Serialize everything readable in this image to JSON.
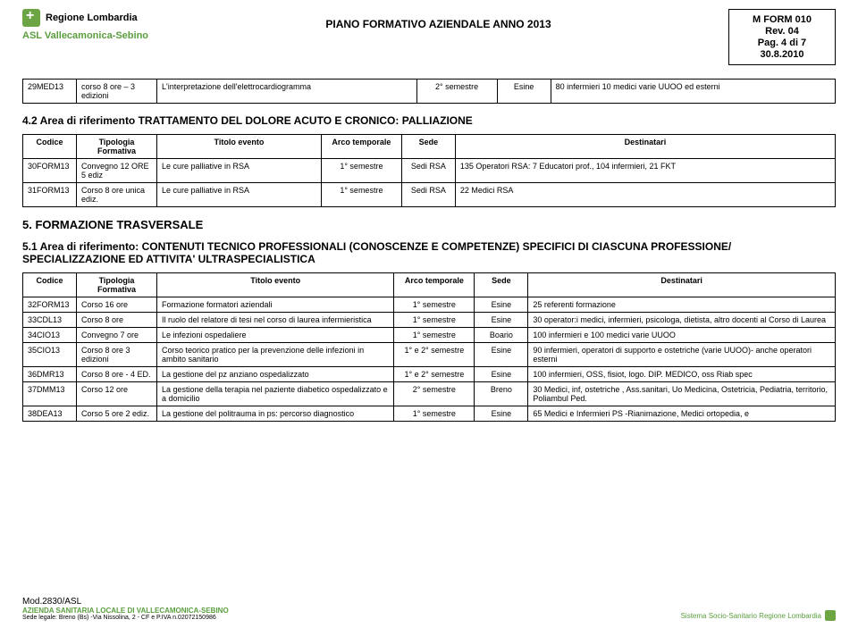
{
  "header": {
    "logo_region": "Regione Lombardia",
    "logo_asl": "ASL Vallecamonica-Sebino",
    "center_title": "PIANO FORMATIVO AZIENDALE    ANNO 2013",
    "meta": {
      "form": "M FORM 010",
      "rev": "Rev. 04",
      "pag": "Pag. 4 di 7",
      "date": "30.8.2010"
    }
  },
  "table_top": {
    "rows": [
      {
        "code": "29MED13",
        "tip": "corso 8 ore – 3 edizioni",
        "title": "L'interpretazione dell'elettrocardiogramma",
        "arco": "2° semestre",
        "sede": "Esine",
        "dest": "80 infermieri 10 medici varie UUOO ed esterni"
      }
    ]
  },
  "section42": {
    "title": "4.2    Area di riferimento TRATTAMENTO DEL DOLORE ACUTO E CRONICO: PALLIAZIONE",
    "headers": [
      "Codice",
      "Tipologia Formativa",
      "Titolo evento",
      "Arco temporale",
      "Sede",
      "Destinatari"
    ],
    "rows": [
      {
        "code": "30FORM13",
        "tip": "Convegno 12 ORE 5 ediz",
        "title": "Le cure palliative in RSA",
        "arco": "1° semestre",
        "sede": "Sedi RSA",
        "dest": "135 Operatori RSA: 7 Educatori prof., 104 infermieri, 21 FKT"
      },
      {
        "code": "31FORM13",
        "tip": "Corso 8 ore unica ediz.",
        "title": "Le cure palliative in RSA",
        "arco": "1° semestre",
        "sede": "Sedi RSA",
        "dest": "22 Medici RSA"
      }
    ]
  },
  "section5": {
    "heading": "5. FORMAZIONE TRASVERSALE",
    "subtitle": "5.1    Area di riferimento: CONTENUTI TECNICO PROFESSIONALI (CONOSCENZE E COMPETENZE) SPECIFICI DI CIASCUNA PROFESSIONE/ SPECIALIZZAZIONE ED ATTIVITA' ULTRASPECIALISTICA",
    "headers": [
      "Codice",
      "Tipologia Formativa",
      "Titolo evento",
      "Arco temporale",
      "Sede",
      "Destinatari"
    ],
    "rows": [
      {
        "code": "32FORM13",
        "tip": "Corso 16 ore",
        "title": "Formazione formatori aziendali",
        "arco": "1° semestre",
        "sede": "Esine",
        "dest": "25 referenti formazione"
      },
      {
        "code": "33CDL13",
        "tip": "Corso  8 ore",
        "title": "Il ruolo del relatore di tesi nel corso di laurea infermieristica",
        "arco": "1° semestre",
        "sede": "Esine",
        "dest": "30 operator:i medici, infermieri, psicologa, dietista, altro docenti al Corso di Laurea"
      },
      {
        "code": "34CIO13",
        "tip": "Convegno 7 ore",
        "title": "Le infezioni ospedaliere",
        "arco": "1° semestre",
        "sede": "Boario",
        "dest": "100 infermieri e 100 medici varie UUOO"
      },
      {
        "code": "35CIO13",
        "tip": "Corso 8 ore 3 edizioni",
        "title": "Corso teorico pratico per la prevenzione delle infezioni in ambito sanitario",
        "arco": "1° e 2° semestre",
        "sede": "Esine",
        "dest": "90 infermieri, operatori di supporto e ostetriche (varie UUOO)- anche operatori esterni"
      },
      {
        "code": "36DMR13",
        "tip": "Corso 8 ore - 4 ED.",
        "title": "La gestione del pz anziano ospedalizzato",
        "arco": "1° e 2° semestre",
        "sede": "Esine",
        "dest": "100 infermieri, OSS, fisiot, logo. DIP. MEDICO, oss Riab spec"
      },
      {
        "code": "37DMM13",
        "tip": "Corso 12 ore",
        "title": "La gestione della terapia nel paziente diabetico ospedalizzato e a domicilio",
        "arco": "2° semestre",
        "sede": "Breno",
        "dest": "30 Medici, inf, ostetriche , Ass.sanitari, Uo Medicina, Ostetricia, Pediatria, territorio, Poliambul Ped."
      },
      {
        "code": "38DEA13",
        "tip": "Corso 5 ore 2 ediz.",
        "title": "La gestione del politrauma in ps: percorso diagnostico",
        "arco": "1° semestre",
        "sede": "Esine",
        "dest": "65 Medici e Infermieri PS -Rianimazione, Medici ortopedia, e"
      }
    ]
  },
  "footer": {
    "mod": "Mod.2830/ASL",
    "azienda": "AZIENDA SANITARIA LOCALE DI VALLECAMONICA-SEBINO",
    "addr": "Sede legale: Breno (Bs) -Via Nissolina, 2 - CF e P.IVA n.02072150986",
    "right_logo": "Sistema Socio-Sanitario Regione Lombardia"
  }
}
